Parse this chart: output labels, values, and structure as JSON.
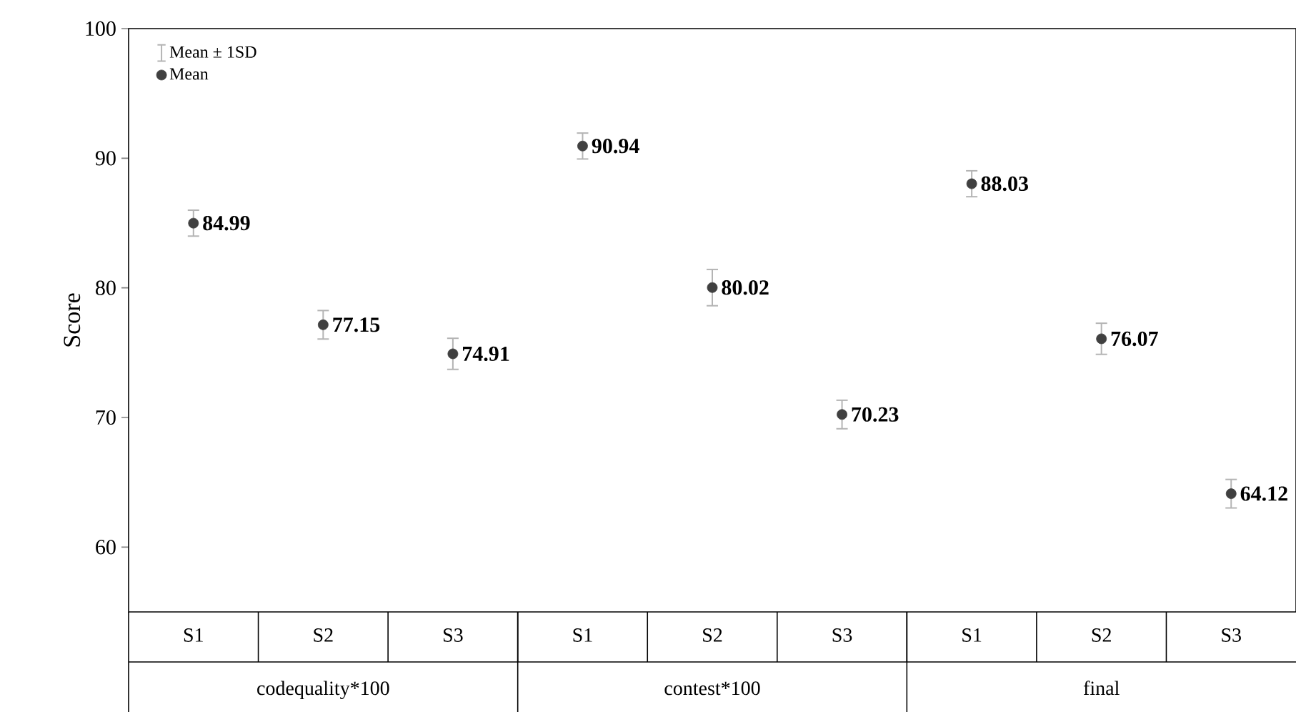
{
  "chart_data": {
    "type": "scatter",
    "ylabel": "Score",
    "categories": [
      "S1",
      "S2",
      "S3",
      "S1",
      "S2",
      "S3",
      "S1",
      "S2",
      "S3"
    ],
    "annotations": [
      "Mean ± 1SD",
      "codequality*100",
      "contest*100",
      "final"
    ],
    "series": [
      {
        "name": "Mean",
        "color": "#404040",
        "marker": "circle",
        "values": [
          84.99,
          77.15,
          74.91,
          90.94,
          80.02,
          70.23,
          88.03,
          76.07,
          64.12
        ],
        "errors": [
          1.0,
          1.1,
          1.2,
          1.0,
          1.4,
          1.1,
          1.0,
          1.2,
          1.1
        ],
        "value_labels": [
          "84.99",
          "77.15",
          "74.91",
          "90.94",
          "80.02",
          "70.23",
          "88.03",
          "76.07",
          "64.12"
        ]
      }
    ],
    "ylim": [
      55,
      100
    ],
    "yticks": [
      60,
      70,
      80,
      90,
      100
    ],
    "grid": false,
    "legend": "top left"
  }
}
